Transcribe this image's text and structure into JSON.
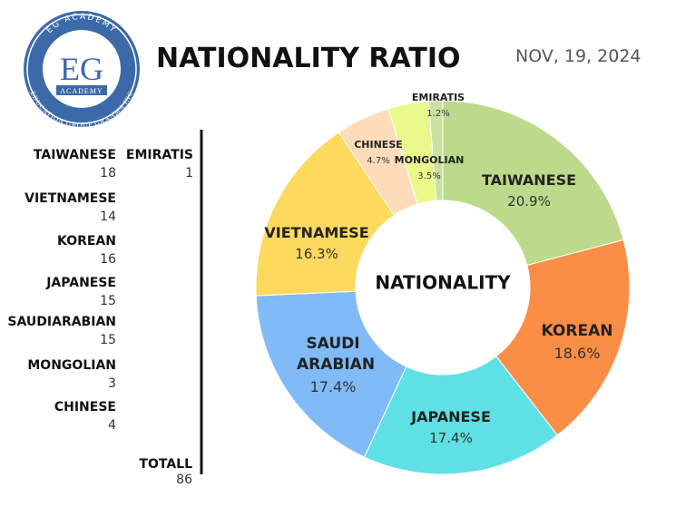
{
  "header": {
    "title": "NATIONALITY RATIO",
    "date": "NOV, 19, 2024",
    "logo": {
      "initials": "EG",
      "word": "ACADEMY",
      "top_arc": "EG ACADEMY",
      "bottom_arc": "EDUCATION GROUP GRANMA INC"
    }
  },
  "counts": {
    "items": [
      {
        "label": "TAIWANESE",
        "value": "18"
      },
      {
        "label": "EMIRATIS",
        "value": "1"
      },
      {
        "label": "VIETNAMESE",
        "value": "14"
      },
      {
        "label": "KOREAN",
        "value": "16"
      },
      {
        "label": "JAPANESE",
        "value": "15"
      },
      {
        "label": "SAUDIARABIAN",
        "value": "15"
      },
      {
        "label": "MONGOLIAN",
        "value": "3"
      },
      {
        "label": "CHINESE",
        "value": "4"
      }
    ],
    "total": {
      "label": "TOTALL",
      "value": "86"
    }
  },
  "chart_data": {
    "type": "donut",
    "center_label": "NATIONALITY",
    "categories": [
      "TAIWANESE",
      "KOREAN",
      "JAPANESE",
      "SAUDI ARABIAN",
      "VIETNAMESE",
      "CHINESE",
      "MONGOLIAN",
      "EMIRATIS"
    ],
    "values": [
      20.9,
      18.6,
      17.4,
      17.4,
      16.3,
      4.7,
      3.5,
      1.2
    ],
    "value_labels": [
      "20.9%",
      "18.6%",
      "17.4%",
      "17.4%",
      "16.3%",
      "4.7%",
      "3.5%",
      "1.2%"
    ],
    "colors": [
      "#bdd98b",
      "#fb8e46",
      "#5fe0e4",
      "#80baf7",
      "#fdd95d",
      "#fcdcb9",
      "#e9f98b",
      "#c8e3a0"
    ]
  }
}
